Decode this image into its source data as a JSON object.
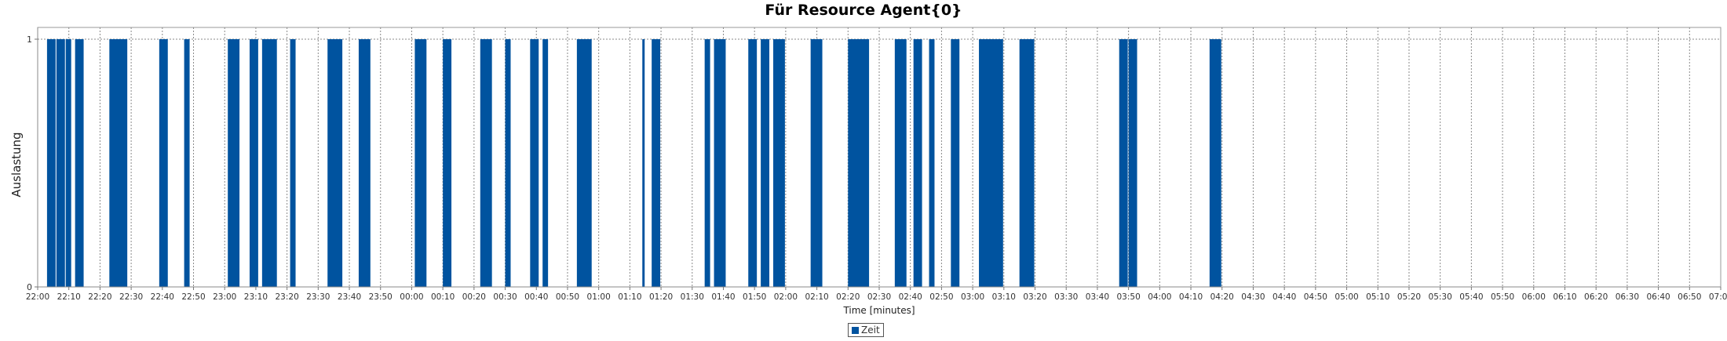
{
  "chart_data": {
    "type": "bar",
    "title": "Für Resource Agent{0}",
    "xlabel": "Time [minutes]",
    "ylabel": "Auslastung",
    "ylim": [
      0,
      1
    ],
    "xlim_minutes": [
      0,
      540
    ],
    "y_ticks": [
      "0",
      "1"
    ],
    "x_ticks": [
      "22:00",
      "22:10",
      "22:20",
      "22:30",
      "22:40",
      "22:50",
      "23:00",
      "23:10",
      "23:20",
      "23:30",
      "23:40",
      "23:50",
      "00:00",
      "00:10",
      "00:20",
      "00:30",
      "00:40",
      "00:50",
      "01:00",
      "01:10",
      "01:20",
      "01:30",
      "01:40",
      "01:50",
      "02:00",
      "02:10",
      "02:20",
      "02:30",
      "02:40",
      "02:50",
      "03:00",
      "03:10",
      "03:20",
      "03:30",
      "03:40",
      "03:50",
      "04:00",
      "04:10",
      "04:20",
      "04:30",
      "04:40",
      "04:50",
      "05:00",
      "05:10",
      "05:20",
      "05:30",
      "05:40",
      "05:50",
      "06:00",
      "06:10",
      "06:20",
      "06:30",
      "06:40",
      "06:50",
      "07:00"
    ],
    "grid": true,
    "legend_position": "bottom-center",
    "series": [
      {
        "name": "Zeit",
        "color": "#00539f",
        "intervals": [
          {
            "start": "22:03",
            "end": "22:06",
            "value": 1
          },
          {
            "start": "22:06",
            "end": "22:09",
            "value": 1
          },
          {
            "start": "22:09",
            "end": "22:11",
            "value": 1
          },
          {
            "start": "22:12",
            "end": "22:15",
            "value": 1
          },
          {
            "start": "22:23",
            "end": "22:29",
            "value": 1
          },
          {
            "start": "22:39",
            "end": "22:42",
            "value": 1
          },
          {
            "start": "22:47",
            "end": "22:49",
            "value": 1
          },
          {
            "start": "23:01",
            "end": "23:05",
            "value": 1
          },
          {
            "start": "23:08",
            "end": "23:11",
            "value": 1
          },
          {
            "start": "23:12",
            "end": "23:17",
            "value": 1
          },
          {
            "start": "23:21",
            "end": "23:23",
            "value": 1
          },
          {
            "start": "23:33",
            "end": "23:38",
            "value": 1
          },
          {
            "start": "23:43",
            "end": "23:47",
            "value": 1
          },
          {
            "start": "00:01",
            "end": "00:05",
            "value": 1
          },
          {
            "start": "00:10",
            "end": "00:13",
            "value": 1
          },
          {
            "start": "00:22",
            "end": "00:26",
            "value": 1
          },
          {
            "start": "00:30",
            "end": "00:32",
            "value": 1
          },
          {
            "start": "00:38",
            "end": "00:41",
            "value": 1
          },
          {
            "start": "00:42",
            "end": "00:44",
            "value": 1
          },
          {
            "start": "00:53",
            "end": "00:58",
            "value": 1
          },
          {
            "start": "01:14",
            "end": "01:15",
            "value": 1
          },
          {
            "start": "01:17",
            "end": "01:20",
            "value": 1
          },
          {
            "start": "01:34",
            "end": "01:36",
            "value": 1
          },
          {
            "start": "01:37",
            "end": "01:41",
            "value": 1
          },
          {
            "start": "01:48",
            "end": "01:51",
            "value": 1
          },
          {
            "start": "01:52",
            "end": "01:55",
            "value": 1
          },
          {
            "start": "01:56",
            "end": "02:00",
            "value": 1
          },
          {
            "start": "02:08",
            "end": "02:12",
            "value": 1
          },
          {
            "start": "02:20",
            "end": "02:27",
            "value": 1
          },
          {
            "start": "02:35",
            "end": "02:39",
            "value": 1
          },
          {
            "start": "02:41",
            "end": "02:44",
            "value": 1
          },
          {
            "start": "02:46",
            "end": "02:48",
            "value": 1
          },
          {
            "start": "02:53",
            "end": "02:56",
            "value": 1
          },
          {
            "start": "03:02",
            "end": "03:10",
            "value": 1
          },
          {
            "start": "03:15",
            "end": "03:20",
            "value": 1
          },
          {
            "start": "03:47",
            "end": "03:50",
            "value": 1
          },
          {
            "start": "03:50",
            "end": "03:53",
            "value": 1
          },
          {
            "start": "04:16",
            "end": "04:20",
            "value": 1
          }
        ]
      }
    ]
  }
}
